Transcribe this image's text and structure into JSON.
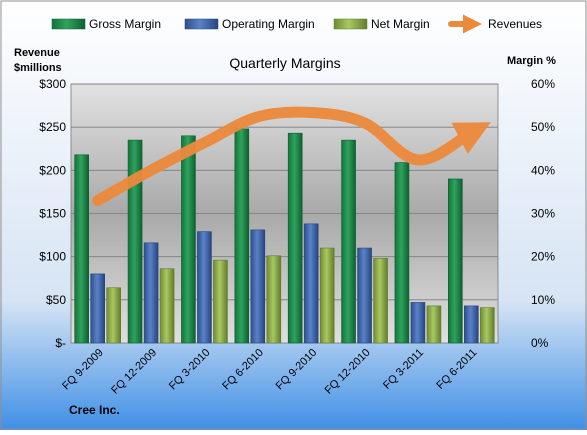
{
  "chart_data": {
    "type": "bar",
    "title": "Quarterly Margins",
    "company": "Cree Inc.",
    "left_axis_label_line1": "Revenue",
    "left_axis_label_line2": "$millions",
    "right_axis_label": "Margin %",
    "categories": [
      "FQ 9-2009",
      "FQ 12-2009",
      "FQ 3-2010",
      "FQ 6-2010",
      "FQ 9-2010",
      "FQ 12-2010",
      "FQ 3-2011",
      "FQ 6-2011"
    ],
    "left_ticks": [
      "$-",
      "$50",
      "$100",
      "$150",
      "$200",
      "$250",
      "$300"
    ],
    "right_ticks": [
      "0%",
      "10%",
      "20%",
      "30%",
      "40%",
      "50%",
      "60%"
    ],
    "ylim_left": [
      0,
      300
    ],
    "ylim_right": [
      0,
      60
    ],
    "series": [
      {
        "name": "Gross Margin",
        "axis": "right",
        "kind": "bar",
        "color": "#1e8a4a",
        "values": [
          43.6,
          47.0,
          48.0,
          49.6,
          48.6,
          47.0,
          41.8,
          38.0
        ]
      },
      {
        "name": "Operating Margin",
        "axis": "right",
        "kind": "bar",
        "color": "#3d63a8",
        "values": [
          16.0,
          23.2,
          25.8,
          26.2,
          27.6,
          22.0,
          9.4,
          8.6
        ]
      },
      {
        "name": "Net Margin",
        "axis": "right",
        "kind": "bar",
        "color": "#8fae48",
        "values": [
          12.8,
          17.2,
          19.2,
          20.2,
          22.0,
          19.6,
          8.6,
          8.2
        ]
      },
      {
        "name": "Revenues",
        "axis": "left",
        "kind": "line",
        "color": "#ec8a3c",
        "values": [
          165,
          200,
          232,
          262,
          267,
          255,
          212,
          244
        ]
      }
    ],
    "legend_position": "top",
    "grid": true
  }
}
